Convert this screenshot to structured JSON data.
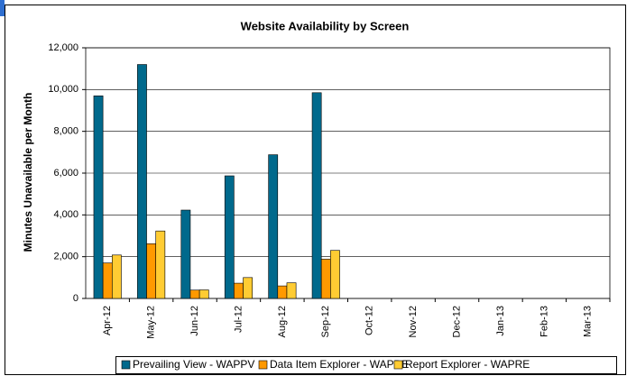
{
  "chart_data": {
    "type": "bar",
    "title": "Website Availability by Screen",
    "y_label": "Minutes Unavailable per Month",
    "categories": [
      "Apr-12",
      "May-12",
      "Jun-12",
      "Jul-12",
      "Aug-12",
      "Sep-12",
      "Oct-12",
      "Nov-12",
      "Dec-12",
      "Jan-13",
      "Feb-13",
      "Mar-13"
    ],
    "series": [
      {
        "name": "Prevailing View - WAPPV",
        "color": "#00698c",
        "values": [
          9700,
          11200,
          4230,
          5870,
          6880,
          9850,
          null,
          null,
          null,
          null,
          null,
          null
        ]
      },
      {
        "name": "Data Item Explorer - WAPDE",
        "color": "#ff9900",
        "values": [
          1700,
          2620,
          400,
          730,
          600,
          1880,
          null,
          null,
          null,
          null,
          null,
          null
        ]
      },
      {
        "name": "Report Explorer - WAPRE",
        "color": "#ffcc33",
        "values": [
          2080,
          3230,
          410,
          1000,
          750,
          2300,
          null,
          null,
          null,
          null,
          null,
          null
        ]
      }
    ],
    "ylim": [
      0,
      12000
    ],
    "yticks": [
      0,
      {
        "value": 2000,
        "label": "2,000"
      },
      {
        "value": 4000,
        "label": "4,000"
      },
      {
        "value": 6000,
        "label": "6,000"
      },
      {
        "value": 8000,
        "label": "8,000"
      },
      {
        "value": 10000,
        "label": "10,000"
      },
      {
        "value": 12000,
        "label": "12,000"
      }
    ],
    "grid": true,
    "legend": "bottom"
  }
}
